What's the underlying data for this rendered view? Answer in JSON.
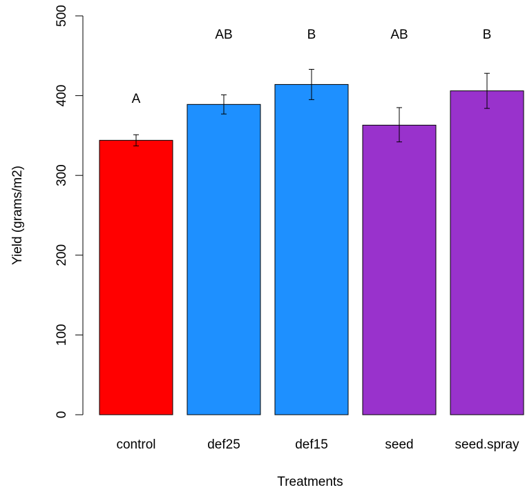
{
  "chart_data": {
    "type": "bar",
    "title": "",
    "xlabel": "Treatments",
    "ylabel": "Yield (grams/m2)",
    "ylim": [
      0,
      500
    ],
    "yticks": [
      0,
      100,
      200,
      300,
      400,
      500
    ],
    "grid": false,
    "legend": "none",
    "categories": [
      "control",
      "def25",
      "def15",
      "seed",
      "seed.spray"
    ],
    "values": [
      344,
      389,
      414,
      363,
      406
    ],
    "error_low": [
      337,
      377,
      395,
      342,
      384
    ],
    "error_high": [
      351,
      401,
      433,
      385,
      428
    ],
    "significance_labels": [
      "A",
      "AB",
      "B",
      "AB",
      "B"
    ],
    "colors": [
      "#ff0000",
      "#1e90ff",
      "#1e90ff",
      "#9932cc",
      "#9932cc"
    ]
  }
}
